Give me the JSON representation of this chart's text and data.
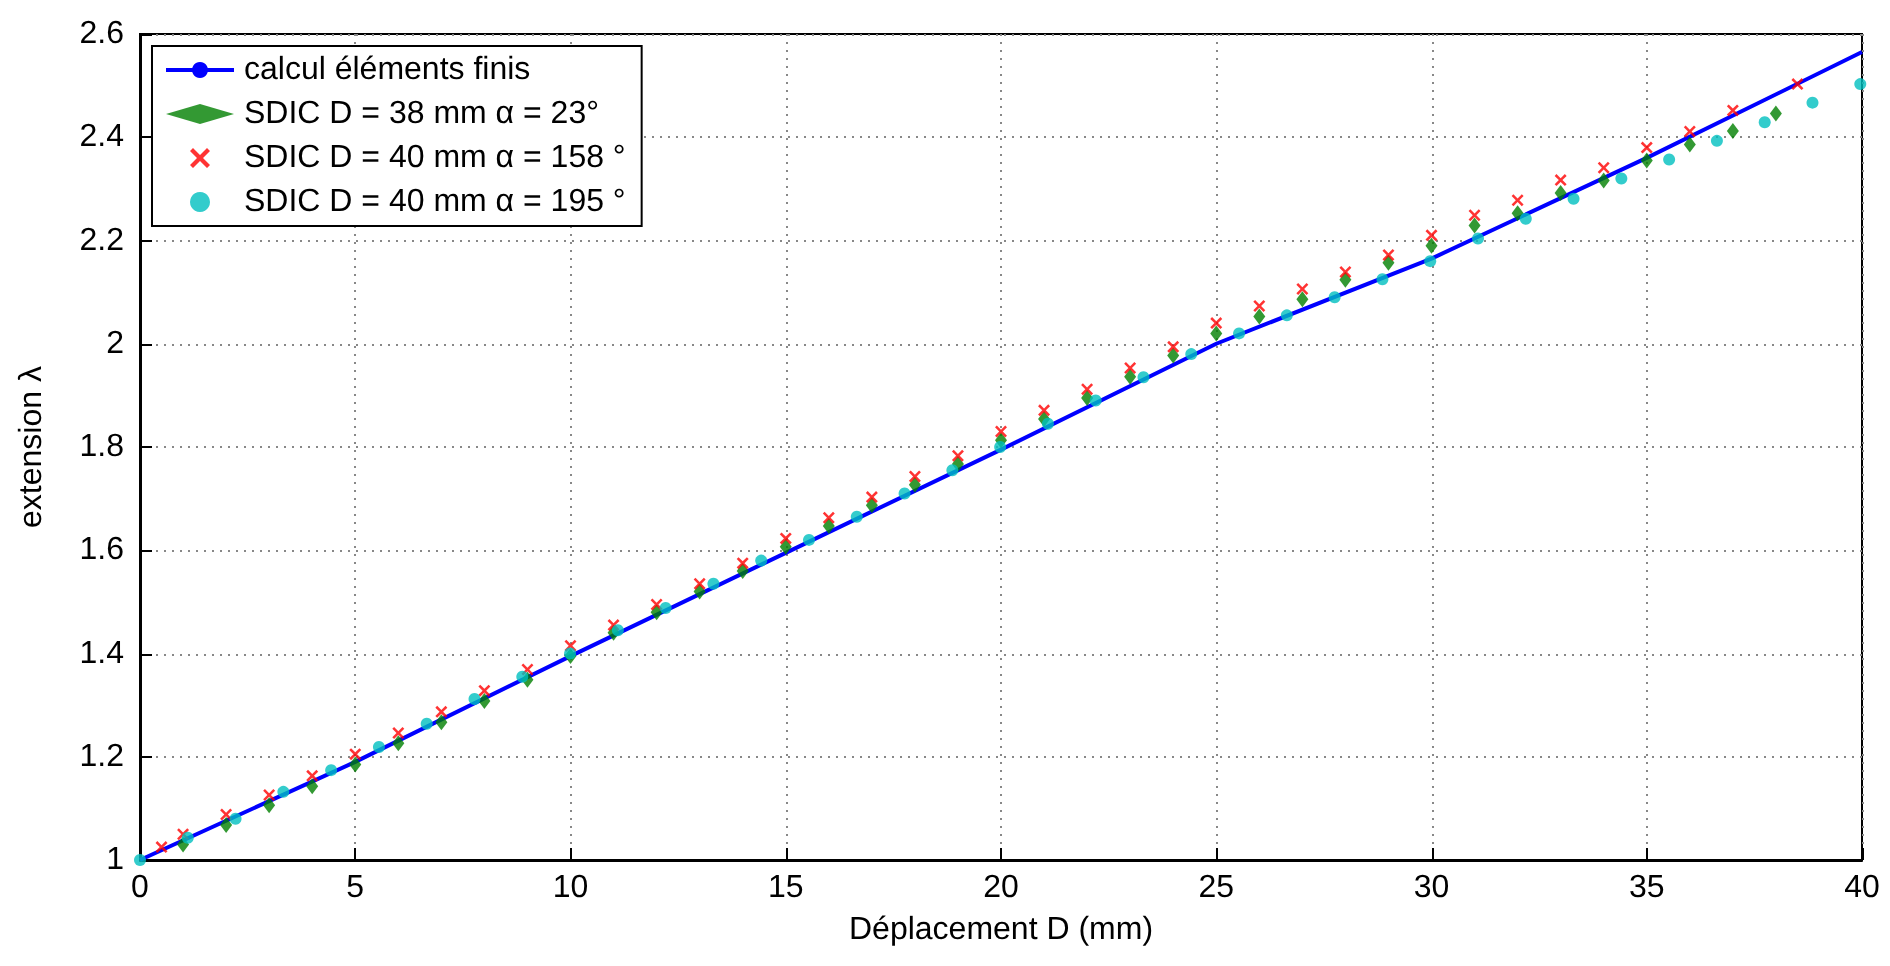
{
  "chart_data": {
    "type": "scatter",
    "xlabel": "Déplacement D (mm)",
    "ylabel": "extension λ",
    "xlim": [
      0,
      40
    ],
    "xticks": [
      0,
      5,
      10,
      15,
      20,
      25,
      30,
      35,
      40
    ],
    "ylim": [
      1,
      2.6
    ],
    "yticks": [
      1,
      1.2,
      1.4,
      1.6,
      1.8,
      2,
      2.2,
      2.4,
      2.6
    ],
    "grid": true,
    "legend": "top left",
    "series": [
      {
        "name": "calcul éléments finis",
        "type": "line",
        "marker": "none",
        "line_style": "solid",
        "color": "#0000ff",
        "x": [
          0,
          5,
          10,
          15,
          20,
          25,
          30,
          35,
          40
        ],
        "values": [
          1.0,
          1.19,
          1.395,
          1.595,
          1.795,
          2.0,
          2.165,
          2.36,
          2.565
        ]
      },
      {
        "name": "SDIC D = 38 mm α = 23°",
        "marker": "diamond",
        "color": "#008000",
        "x": [
          1,
          2,
          3,
          4,
          5,
          6,
          7,
          8,
          9,
          10,
          11,
          12,
          13,
          14,
          15,
          16,
          17,
          18,
          19,
          20,
          21,
          22,
          23,
          24,
          25,
          26,
          27,
          28,
          29,
          30,
          31,
          32,
          33,
          34,
          35,
          36,
          37,
          38
        ],
        "values": [
          1.03,
          1.068,
          1.106,
          1.143,
          1.185,
          1.226,
          1.267,
          1.308,
          1.349,
          1.395,
          1.44,
          1.48,
          1.52,
          1.56,
          1.607,
          1.647,
          1.687,
          1.727,
          1.767,
          1.813,
          1.854,
          1.895,
          1.936,
          1.977,
          2.02,
          2.053,
          2.086,
          2.124,
          2.157,
          2.19,
          2.229,
          2.253,
          2.292,
          2.316,
          2.355,
          2.386,
          2.412,
          2.446
        ]
      },
      {
        "name": "SDIC D = 40 mm α = 158 °",
        "marker": "cross",
        "color": "#ff0000",
        "x": [
          0.5,
          1,
          2,
          3,
          4,
          5,
          6,
          7,
          8,
          9,
          10,
          11,
          12,
          13,
          14,
          15,
          16,
          17,
          18,
          19,
          20,
          21,
          22,
          23,
          24,
          25,
          26,
          27,
          28,
          29,
          30,
          31,
          32,
          33,
          34,
          35,
          36,
          37,
          38.5
        ],
        "values": [
          1.025,
          1.05,
          1.088,
          1.126,
          1.163,
          1.205,
          1.246,
          1.287,
          1.328,
          1.369,
          1.415,
          1.455,
          1.495,
          1.535,
          1.575,
          1.623,
          1.663,
          1.703,
          1.743,
          1.783,
          1.83,
          1.871,
          1.912,
          1.953,
          1.994,
          2.04,
          2.073,
          2.106,
          2.139,
          2.172,
          2.21,
          2.249,
          2.278,
          2.317,
          2.341,
          2.38,
          2.411,
          2.452,
          2.503
        ]
      },
      {
        "name": "SDIC D = 40 mm α = 195 °",
        "marker": "circle",
        "color": "#00bfbf",
        "x": [
          0,
          1.11,
          2.22,
          3.33,
          4.44,
          5.55,
          6.66,
          7.77,
          8.88,
          9.99,
          11.1,
          12.21,
          13.32,
          14.43,
          15.54,
          16.65,
          17.76,
          18.87,
          19.98,
          21.09,
          22.2,
          23.31,
          24.42,
          25.53,
          26.64,
          27.75,
          28.86,
          29.97,
          31.08,
          32.19,
          33.3,
          34.41,
          35.52,
          36.63,
          37.74,
          38.85,
          39.96
        ],
        "values": [
          1.0,
          1.043,
          1.08,
          1.132,
          1.174,
          1.219,
          1.264,
          1.312,
          1.355,
          1.4,
          1.445,
          1.488,
          1.535,
          1.58,
          1.62,
          1.665,
          1.71,
          1.755,
          1.8,
          1.845,
          1.89,
          1.935,
          1.98,
          2.02,
          2.055,
          2.09,
          2.125,
          2.16,
          2.204,
          2.242,
          2.281,
          2.32,
          2.357,
          2.393,
          2.429,
          2.467,
          2.503
        ]
      }
    ]
  }
}
